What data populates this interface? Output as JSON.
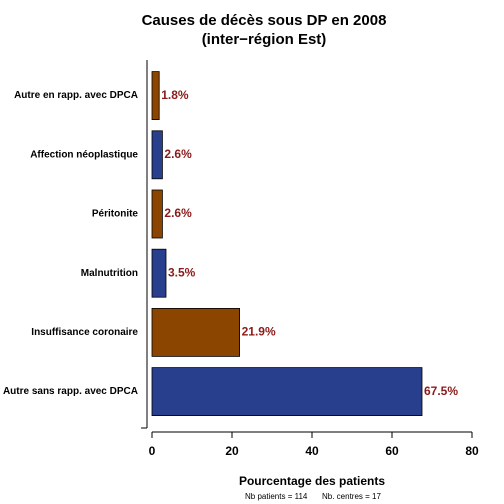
{
  "chart_data": {
    "type": "barh",
    "title": [
      "Causes de décès sous DP en 2008",
      "(inter−région Est)"
    ],
    "xlabel": "Pourcentage des patients",
    "annotations": [
      "Nb patients =  114",
      "Nb. centres =  17"
    ],
    "categories": [
      "Autre en rapp. avec DPCA",
      "Affection néoplastique",
      "Péritonite",
      "Malnutrition",
      "Insuffisance coronaire",
      "Autre sans rapp. avec DPCA"
    ],
    "values": [
      1.8,
      2.6,
      2.6,
      3.5,
      21.9,
      67.5
    ],
    "value_labels": [
      "1.8%",
      "2.6%",
      "2.6%",
      "3.5%",
      "21.9%",
      "67.5%"
    ],
    "colors": [
      "#8b4500",
      "#283f8e",
      "#8b4500",
      "#283f8e",
      "#8b4500",
      "#283f8e"
    ],
    "value_label_color": "#8b1a1a",
    "xlim": [
      0,
      80
    ],
    "xticks": [
      0,
      20,
      40,
      60,
      80
    ]
  }
}
